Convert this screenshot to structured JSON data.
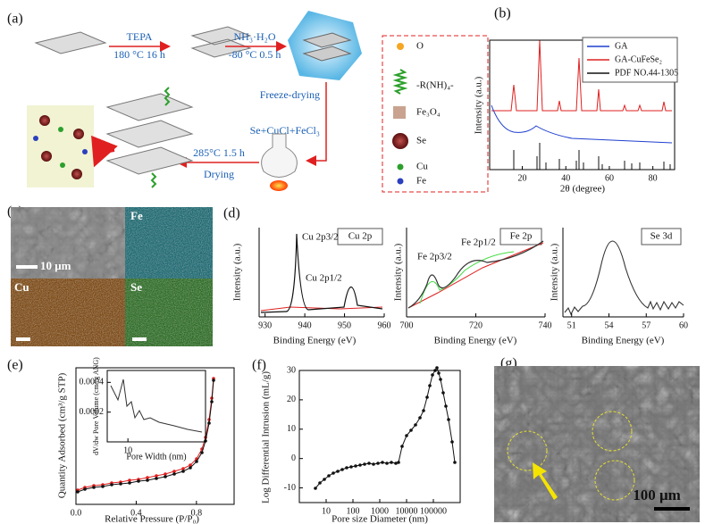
{
  "panels": {
    "a": {
      "label": "(a)",
      "step1_top": "TEPA",
      "step1_bottom": "180 °C 16 h",
      "step2_top": "NH₃·H₂O",
      "step2_bottom": "-80 °C 0.5 h",
      "freeze": "Freeze-drying",
      "reagents": "Se+CuCl+FeCl₃",
      "heat": "285°C 1.5 h",
      "drying": "Drying",
      "legend": [
        "O",
        "-R(NH)₄-",
        "Fe₃O₄",
        "Se",
        "Cu",
        "Fe"
      ]
    },
    "b": {
      "label": "(b)",
      "x_label": "2θ (degree)",
      "y_label": "Intensity (a.u.)",
      "xlim": [
        5,
        90
      ],
      "xticks": [
        20,
        40,
        60,
        80
      ],
      "legend": [
        {
          "name": "GA",
          "color": "#1f3fcf"
        },
        {
          "name": "GA-CuFeSe₂",
          "color": "#e02020"
        },
        {
          "name": "PDF NO.44-1305",
          "color": "#111111"
        }
      ]
    },
    "c": {
      "label": "(c)",
      "scale": "10 μm",
      "maps": [
        "Fe",
        "Cu",
        "Se"
      ]
    },
    "d": {
      "label": "(d)",
      "x_label": "Binding Energy (eV)",
      "y_label": "Intensity (a.u.)",
      "plots": [
        {
          "title": "Cu 2p",
          "peaks": [
            "Cu 2p3/2",
            "Cu 2p1/2"
          ],
          "xlim": [
            928.5,
            960
          ],
          "xticks": [
            930,
            940,
            950,
            960
          ]
        },
        {
          "title": "Fe 2p",
          "peaks": [
            "Fe 2p3/2",
            "Fe 2p1/2"
          ],
          "xlim": [
            700,
            740
          ],
          "xticks": [
            700,
            720,
            740
          ]
        },
        {
          "title": "Se 3d",
          "peaks": [],
          "xlim": [
            50.3,
            60
          ],
          "xticks": [
            51,
            54,
            57,
            60
          ]
        }
      ]
    },
    "e": {
      "label": "(e)",
      "x_label": "Relative Pressure (P/P₀)",
      "y_label": "Quantity Adsorbed (cm³/g STP)",
      "xlim": [
        0,
        1.05
      ],
      "xticks": [
        {
          "value": 0,
          "label": "0.0"
        },
        0.4,
        0.8
      ],
      "inset": {
        "x_label": "Pore Width (nm)",
        "y_label": "dV/dw Pore Volume (cm³/g ANG)",
        "xlim": [
          2,
          40
        ],
        "xticks": [
          10
        ],
        "ylim": [
          0,
          0.00048
        ],
        "yticks": [
          0.0002,
          0.0004
        ]
      }
    },
    "f": {
      "label": "(f)",
      "x_label": "Pore size Diameter (nm)",
      "y_label": "Log Differential Intrusion (mL/g)",
      "log_x": true,
      "xlim": [
        1,
        1000000
      ],
      "xticks": [
        10,
        100,
        1000,
        10000,
        100000
      ],
      "ylim": [
        -15,
        30
      ],
      "yticks": [
        -10,
        0,
        10,
        20,
        30
      ]
    },
    "g": {
      "label": "(g)",
      "scale": "100 μm"
    }
  }
}
